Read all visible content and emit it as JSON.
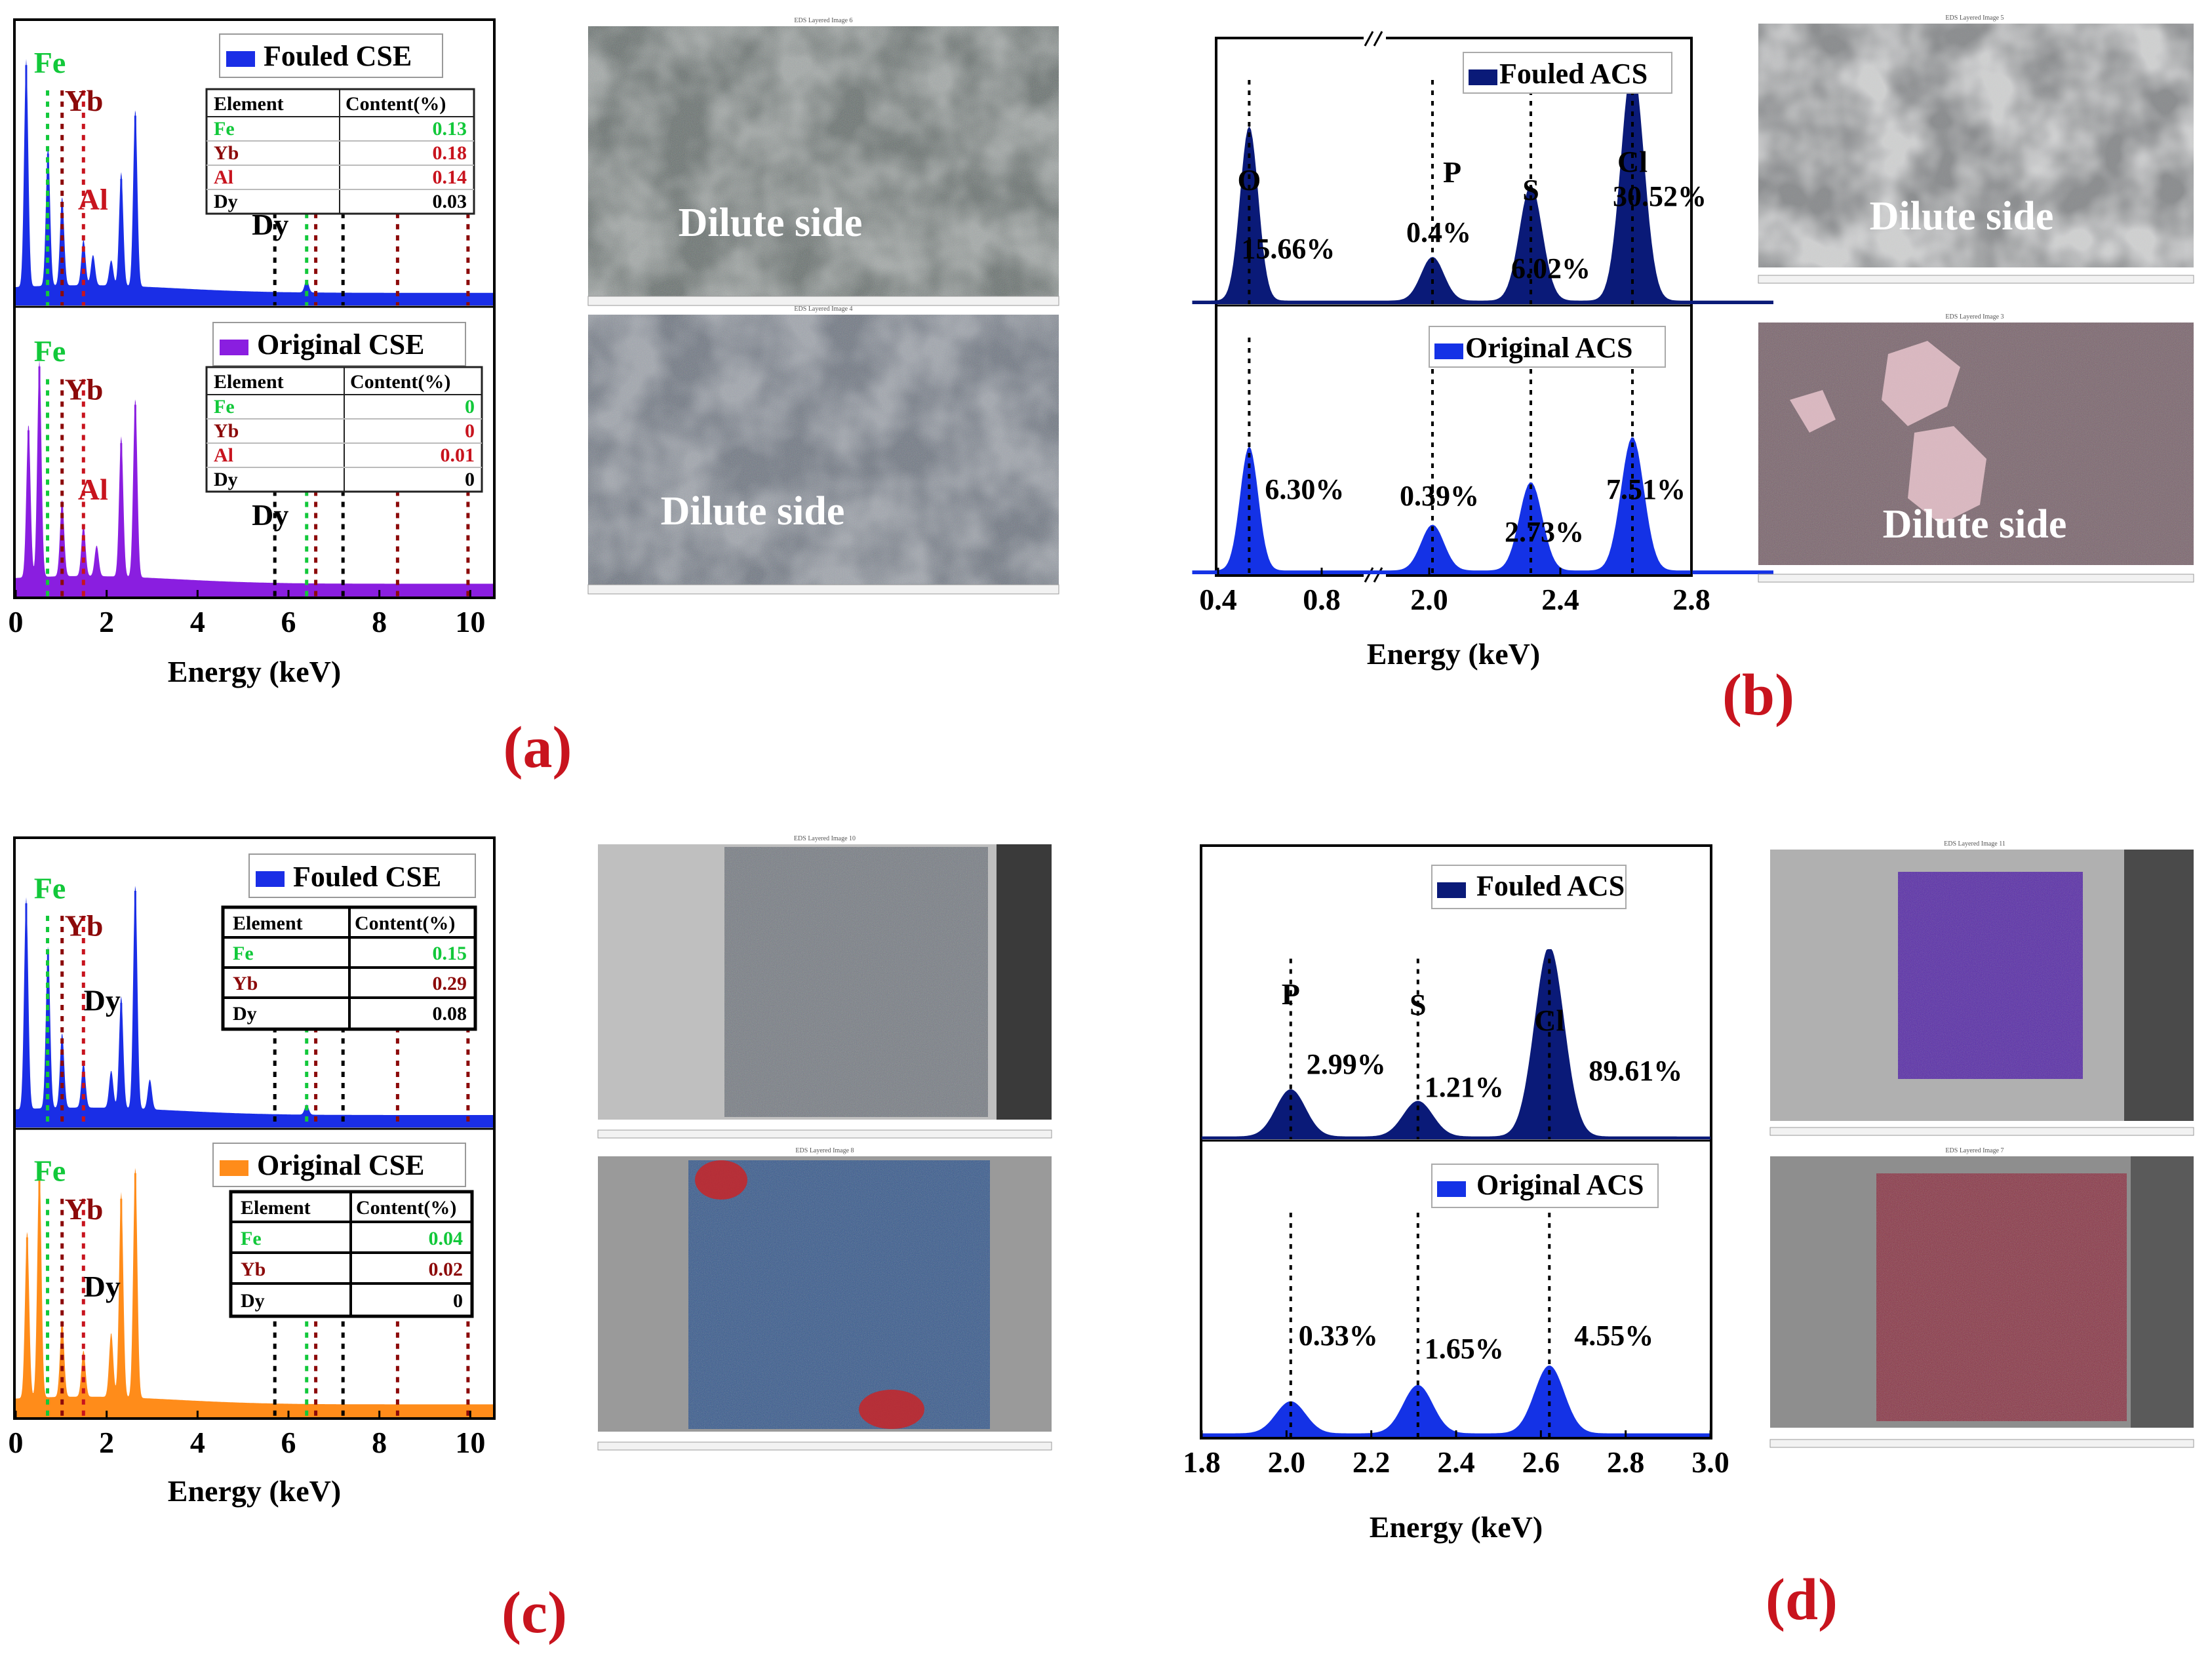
{
  "colors": {
    "fouled_cse": "#1a2ee6",
    "original_cse_a": "#8a1ee0",
    "original_cse_c": "#ff8c1a",
    "fouled_acs": "#0a1a78",
    "original_acs": "#1432e6",
    "label_red": "#c8141e",
    "fe_green": "#12c83a",
    "dark_red": "#8c0a0a"
  },
  "panel_labels": {
    "a": "(a)",
    "b": "(b)",
    "c": "(c)",
    "d": "(d)"
  },
  "micrograph_captions": {
    "a_top": "Dilute side",
    "a_bottom": "Dilute side",
    "b_top": "Dilute side",
    "b_bottom": "Dilute side"
  },
  "micrograph_headers": {
    "a_top": "EDS Layered Image 6",
    "a_bottom": "EDS Layered Image 4",
    "b_top": "EDS Layered Image 5",
    "b_bottom": "EDS Layered Image 3",
    "c_top": "EDS Layered Image 10",
    "c_bottom": "EDS Layered Image 8",
    "d_top": "EDS Layered Image 11",
    "d_bottom": "EDS Layered Image 7"
  },
  "chart_data": [
    {
      "id": "a",
      "type": "area",
      "xlabel": "Energy (keV)",
      "xlim": [
        0,
        10.5
      ],
      "xticks": [
        0,
        2,
        4,
        6,
        8,
        10
      ],
      "subplots": [
        {
          "legend": "Fouled CSE",
          "peaks": [
            [
              0.23,
              0.9
            ],
            [
              0.71,
              0.55
            ],
            [
              1.02,
              0.35
            ],
            [
              1.49,
              0.18
            ],
            [
              1.7,
              0.12
            ],
            [
              2.1,
              0.1
            ],
            [
              2.32,
              0.45
            ],
            [
              2.63,
              0.7
            ],
            [
              6.4,
              0.05
            ]
          ],
          "element_labels": [
            {
              "name": "Fe",
              "energy": 0.7,
              "color": "fe_green"
            },
            {
              "name": "Yb",
              "energy": 1.5,
              "color": "dark_red"
            },
            {
              "name": "Al",
              "energy": 1.49,
              "color": "label_red"
            },
            {
              "name": "Dy",
              "energy": 5.7,
              "color": "black"
            }
          ],
          "table": {
            "headers": [
              "Element",
              "Content(%)"
            ],
            "rows": [
              [
                "Fe",
                "0.13"
              ],
              [
                "Yb",
                "0.18"
              ],
              [
                "Al",
                "0.14"
              ],
              [
                "Dy",
                "0.03"
              ]
            ]
          }
        },
        {
          "legend": "Original CSE",
          "peaks": [
            [
              0.28,
              0.6
            ],
            [
              0.52,
              0.85
            ],
            [
              1.02,
              0.3
            ],
            [
              1.49,
              0.2
            ],
            [
              1.78,
              0.12
            ],
            [
              2.32,
              0.55
            ],
            [
              2.63,
              0.7
            ]
          ],
          "element_labels": [
            {
              "name": "Fe",
              "energy": 0.7,
              "color": "fe_green"
            },
            {
              "name": "Yb",
              "energy": 1.5,
              "color": "dark_red"
            },
            {
              "name": "Al",
              "energy": 1.49,
              "color": "label_red"
            },
            {
              "name": "Dy",
              "energy": 5.7,
              "color": "black"
            }
          ],
          "table": {
            "headers": [
              "Element",
              "Content(%)"
            ],
            "rows": [
              [
                "Fe",
                "0"
              ],
              [
                "Yb",
                "0"
              ],
              [
                "Al",
                "0.01"
              ],
              [
                "Dy",
                "0"
              ]
            ]
          }
        }
      ]
    },
    {
      "id": "b",
      "type": "area",
      "xlabel": "Energy (keV)",
      "xticks": [
        0.4,
        0.8,
        2.0,
        2.4,
        2.8
      ],
      "axis_break": [
        1.0,
        1.6
      ],
      "subplots": [
        {
          "legend": "Fouled ACS",
          "peaks": [
            [
              "O",
              0.52,
              15.66
            ],
            [
              "P",
              2.01,
              0.4
            ],
            [
              "S",
              2.31,
              6.02
            ],
            [
              "Cl",
              2.62,
              30.52
            ]
          ],
          "labels": [
            "15.66%",
            "0.4%",
            "6.02%",
            "30.52%"
          ]
        },
        {
          "legend": "Original ACS",
          "peaks": [
            [
              "O",
              0.52,
              6.3
            ],
            [
              "P",
              2.01,
              0.39
            ],
            [
              "S",
              2.31,
              2.73
            ],
            [
              "Cl",
              2.62,
              7.51
            ]
          ],
          "labels": [
            "6.30%",
            "0.39%",
            "2.73%",
            "7.51%"
          ]
        }
      ]
    },
    {
      "id": "c",
      "type": "area",
      "xlabel": "Energy (keV)",
      "xlim": [
        0,
        10.5
      ],
      "xticks": [
        0,
        2,
        4,
        6,
        8,
        10
      ],
      "subplots": [
        {
          "legend": "Fouled CSE",
          "peaks": [
            [
              0.23,
              0.85
            ],
            [
              0.71,
              0.65
            ],
            [
              1.02,
              0.3
            ],
            [
              1.49,
              0.18
            ],
            [
              2.1,
              0.15
            ],
            [
              2.32,
              0.45
            ],
            [
              2.63,
              0.9
            ],
            [
              2.95,
              0.12
            ],
            [
              6.4,
              0.04
            ]
          ],
          "element_labels": [
            {
              "name": "Fe",
              "energy": 0.7,
              "color": "fe_green"
            },
            {
              "name": "Yb",
              "energy": 1.5,
              "color": "dark_red"
            },
            {
              "name": "Dy",
              "energy": 1.3,
              "color": "black"
            }
          ],
          "table": {
            "headers": [
              "Element",
              "Content(%)"
            ],
            "rows": [
              [
                "Fe",
                "0.15"
              ],
              [
                "Yb",
                "0.29"
              ],
              [
                "Dy",
                "0.08"
              ]
            ]
          }
        },
        {
          "legend": "Original CSE",
          "peaks": [
            [
              0.25,
              0.65
            ],
            [
              0.52,
              0.9
            ],
            [
              1.02,
              0.3
            ],
            [
              1.49,
              0.18
            ],
            [
              2.1,
              0.25
            ],
            [
              2.32,
              0.8
            ],
            [
              2.63,
              0.9
            ]
          ],
          "element_labels": [
            {
              "name": "Fe",
              "energy": 0.7,
              "color": "fe_green"
            },
            {
              "name": "Yb",
              "energy": 1.5,
              "color": "dark_red"
            },
            {
              "name": "Dy",
              "energy": 1.3,
              "color": "black"
            }
          ],
          "table": {
            "headers": [
              "Element",
              "Content(%)"
            ],
            "rows": [
              [
                "Fe",
                "0.04"
              ],
              [
                "Yb",
                "0.02"
              ],
              [
                "Dy",
                "0"
              ]
            ]
          }
        }
      ]
    },
    {
      "id": "d",
      "type": "area",
      "xlabel": "Energy (keV)",
      "xlim": [
        1.8,
        3.0
      ],
      "xticks": [
        1.8,
        2.0,
        2.2,
        2.4,
        2.6,
        2.8,
        3.0
      ],
      "subplots": [
        {
          "legend": "Fouled ACS",
          "peaks": [
            [
              "P",
              2.01,
              2.99
            ],
            [
              "S",
              2.31,
              1.21
            ],
            [
              "Cl",
              2.62,
              89.61
            ]
          ],
          "labels": [
            "2.99%",
            "1.21%",
            "89.61%"
          ]
        },
        {
          "legend": "Original ACS",
          "peaks": [
            [
              "P",
              2.01,
              0.33
            ],
            [
              "S",
              2.31,
              1.65
            ],
            [
              "Cl",
              2.62,
              4.55
            ]
          ],
          "labels": [
            "0.33%",
            "1.65%",
            "4.55%"
          ]
        }
      ]
    }
  ]
}
